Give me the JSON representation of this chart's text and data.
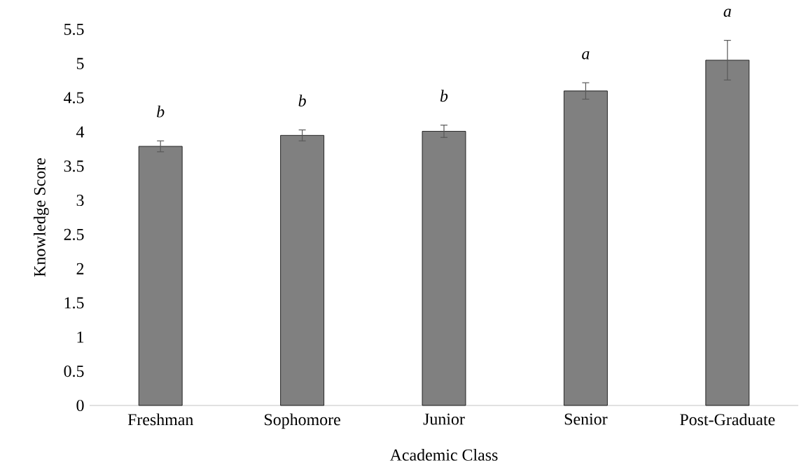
{
  "chart_data": {
    "type": "bar",
    "xlabel": "Academic Class",
    "ylabel": "Knowledge Score",
    "categories": [
      "Freshman",
      "Sophomore",
      "Junior",
      "Senior",
      "Post-Graduate"
    ],
    "values": [
      3.79,
      3.95,
      4.01,
      4.6,
      5.05
    ],
    "errors": [
      0.08,
      0.08,
      0.09,
      0.12,
      0.29
    ],
    "color": "#808080",
    "ylim": [
      0,
      5.5
    ],
    "yticks": [
      0,
      0.5,
      1,
      1.5,
      2,
      2.5,
      3,
      3.5,
      4,
      4.5,
      5,
      5.5
    ],
    "grid": false,
    "annotations": [
      "b",
      "b",
      "b",
      "a",
      "a"
    ]
  }
}
